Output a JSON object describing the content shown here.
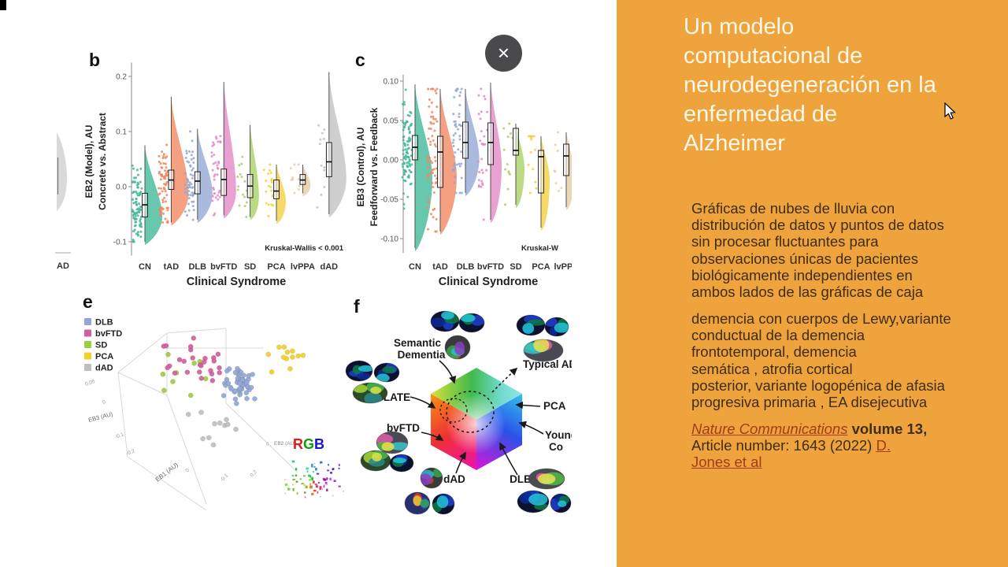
{
  "slide": {
    "title": "Un modelo\ncomputacional de\nneurodegeneración en la\nenfermedad de\nAlzheimer",
    "paragraph1": "Gráficas de nubes de lluvia  con\ndistribución de datos y puntos de datos\nsin procesar fluctuantes para\nobservaciones únicas de pacientes\nbiológicamente independientes en\nambos lados de las gráficas de caja",
    "paragraph2": "demencia con cuerpos de Lewy,variante\nconductual de la demencia\nfrontotemporal, demencia\nsemática , atrofia cortical\nposterior,  variante logopénica de afasia\nprogresiva primaria , EA disejecutiva",
    "citation": {
      "journal": "Nature Communications",
      "volume": " volume 13,\n",
      "article": "Article number: 1643 (2022) ",
      "authors": "D.\nJones et al"
    },
    "colors": {
      "panel_bg": "#eea33d",
      "title_text": "#fdf7e8",
      "body_text": "#3f2d13",
      "link_text": "#a03c1c",
      "close_button_bg": "#4a4a4c"
    }
  },
  "close_button": {
    "symbol": "×"
  },
  "chart_data": [
    {
      "panel": "b",
      "letter": "b",
      "type": "raincloud",
      "ylabel_line1": "EB2 (Model), AU",
      "ylabel_line2": "Concrete vs. Abstract",
      "xlabel": "Clinical Syndrome",
      "annotation": "Kruskal-Wallis < 0.001",
      "ylim": [
        -0.125,
        0.225
      ],
      "yticks": [
        {
          "v": 0.2,
          "label": "0.2"
        },
        {
          "v": 0.1,
          "label": "0.1"
        },
        {
          "v": 0.0,
          "label": "0.0"
        },
        {
          "v": -0.1,
          "label": "-0.1"
        }
      ],
      "categories": [
        "CN",
        "tAD",
        "DLB",
        "bvFTD",
        "SD",
        "PCA",
        "lvPPA",
        "dAD"
      ],
      "colors": [
        "#3fb796",
        "#f2855c",
        "#92a7d4",
        "#e287c3",
        "#a6d163",
        "#f4cf3c",
        "#e7cba2",
        "#c2c2c2"
      ],
      "box_stats": [
        {
          "lo": -0.1,
          "q1": -0.055,
          "med": -0.033,
          "q3": -0.012,
          "hi": 0.075,
          "n": 85
        },
        {
          "lo": -0.065,
          "q1": -0.005,
          "med": 0.012,
          "q3": 0.03,
          "hi": 0.163,
          "n": 70
        },
        {
          "lo": -0.06,
          "q1": -0.013,
          "med": 0.01,
          "q3": 0.027,
          "hi": 0.105,
          "n": 55
        },
        {
          "lo": -0.052,
          "q1": -0.016,
          "med": 0.013,
          "q3": 0.032,
          "hi": 0.19,
          "n": 38
        },
        {
          "lo": -0.055,
          "q1": -0.02,
          "med": 0.001,
          "q3": 0.022,
          "hi": 0.112,
          "n": 16
        },
        {
          "lo": -0.062,
          "q1": -0.022,
          "med": -0.008,
          "q3": 0.012,
          "hi": 0.04,
          "n": 20
        },
        {
          "lo": -0.012,
          "q1": 0.004,
          "med": 0.012,
          "q3": 0.022,
          "hi": 0.04,
          "n": 10,
          "w": 10
        },
        {
          "lo": -0.05,
          "q1": 0.018,
          "med": 0.045,
          "q3": 0.08,
          "hi": 0.208,
          "n": 12,
          "w": 22
        }
      ]
    },
    {
      "panel": "c",
      "letter": "c",
      "type": "raincloud",
      "ylabel_line1": "EB3 (Control), AU",
      "ylabel_line2": "Feedforward vs. Feedback",
      "xlabel": "Clinical Syndrome",
      "annotation": "Kruskal-W",
      "ylim": [
        -0.118,
        0.108
      ],
      "yticks": [
        {
          "v": 0.1,
          "label": "0.10"
        },
        {
          "v": 0.05,
          "label": "0.05"
        },
        {
          "v": 0.0,
          "label": "0.00"
        },
        {
          "v": -0.05,
          "label": "-0.05"
        },
        {
          "v": -0.1,
          "label": "-0.10"
        }
      ],
      "categories": [
        "CN",
        "tAD",
        "DLB",
        "bvFTD",
        "SD",
        "PCA",
        "lvPPA"
      ],
      "colors": [
        "#3fb796",
        "#f2855c",
        "#92a7d4",
        "#e287c3",
        "#a6d163",
        "#f4cf3c",
        "#e7cba2"
      ],
      "box_stats": [
        {
          "lo": -0.112,
          "q1": 0.0,
          "med": 0.016,
          "q3": 0.031,
          "hi": 0.096,
          "n": 90
        },
        {
          "lo": -0.091,
          "q1": -0.035,
          "med": 0.01,
          "q3": 0.03,
          "hi": 0.09,
          "n": 65
        },
        {
          "lo": -0.042,
          "q1": 0.002,
          "med": 0.022,
          "q3": 0.048,
          "hi": 0.09,
          "n": 48
        },
        {
          "lo": -0.076,
          "q1": -0.006,
          "med": 0.022,
          "q3": 0.047,
          "hi": 0.098,
          "n": 30
        },
        {
          "lo": -0.057,
          "q1": 0.006,
          "med": 0.012,
          "q3": 0.04,
          "hi": 0.046,
          "n": 13
        },
        {
          "lo": -0.086,
          "q1": -0.042,
          "med": 0.004,
          "q3": 0.012,
          "hi": 0.03,
          "n": 15
        },
        {
          "lo": -0.06,
          "q1": -0.02,
          "med": 0.005,
          "q3": 0.02,
          "hi": 0.035,
          "n": 8,
          "w": 10
        }
      ]
    },
    {
      "panel": "a-partial",
      "type": "raincloud-fragment",
      "visible_category": "AD"
    },
    {
      "panel": "e",
      "letter": "e",
      "type": "3d-scatter",
      "legend": [
        {
          "label": "DLB",
          "color": "#92a7d4"
        },
        {
          "label": "bvFTD",
          "color": "#d15f9b"
        },
        {
          "label": "SD",
          "color": "#a1cc3e"
        },
        {
          "label": "PCA",
          "color": "#f2cf2a"
        },
        {
          "label": "dAD",
          "color": "#bfbfbf"
        }
      ],
      "axis_labels": {
        "x": "EB1 (AU)",
        "y": "EB2 (AU)",
        "z": "EB3 (AU)"
      },
      "z_ticks": [
        "0.05",
        "0",
        "-0.1",
        "-0.2"
      ],
      "x_ticks": [
        "0",
        "-0.1",
        "0.2"
      ],
      "inset_title": "RGB",
      "inset_title_colors": [
        "#e01b1b",
        "#109c10",
        "#1414cc"
      ],
      "clusters": [
        {
          "group": "SD",
          "n": 9,
          "cx": 245,
          "cy": 478,
          "sx": 48,
          "sy": 36
        },
        {
          "group": "bvFTD",
          "n": 26,
          "cx": 258,
          "cy": 462,
          "sx": 62,
          "sy": 40
        },
        {
          "group": "dAD",
          "n": 11,
          "cx": 262,
          "cy": 540,
          "sx": 55,
          "sy": 26
        },
        {
          "group": "DLB",
          "n": 50,
          "cx": 302,
          "cy": 488,
          "sx": 30,
          "sy": 27
        },
        {
          "group": "PCA",
          "n": 12,
          "cx": 366,
          "cy": 455,
          "sx": 26,
          "sy": 23
        }
      ]
    },
    {
      "panel": "f",
      "letter": "f",
      "type": "rgb-cube-diagram",
      "labels": {
        "semantic": "Semantic\nDementia",
        "late": "LATE",
        "bvftd": "bvFTD",
        "dad": "dAD",
        "dlb": "DLB",
        "pca": "PCA",
        "typical": "Typical AD",
        "young": "Young\nCo"
      },
      "brain_groups": [
        "semantic-dementia",
        "typical-ad",
        "late",
        "bvftd",
        "dad",
        "dlb"
      ]
    }
  ]
}
